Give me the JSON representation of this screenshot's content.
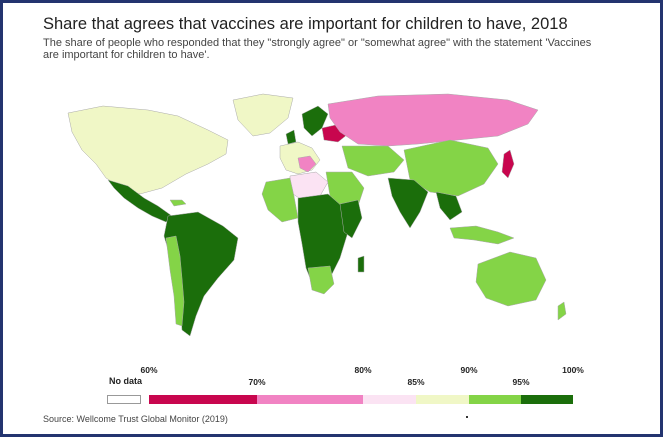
{
  "title": "Share that agrees that vaccines are important for children to have, 2018",
  "subtitle": "The share of people who responded that they \"strongly agree\" or \"somewhat agree\" with the statement 'Vaccines are important for children to have'.",
  "source": "Source: Wellcome Trust Global Monitor (2019)",
  "legend": {
    "no_data_label": "No data",
    "ticks": [
      "60%",
      "70%",
      "80%",
      "85%",
      "90%",
      "95%",
      "100%"
    ],
    "bins": [
      {
        "range": "60-70%",
        "color": "#c8064e"
      },
      {
        "range": "70-80%",
        "color": "#f183c3"
      },
      {
        "range": "80-85%",
        "color": "#fbe3f3"
      },
      {
        "range": "85-90%",
        "color": "#f0f7c6"
      },
      {
        "range": "90-95%",
        "color": "#84d447"
      },
      {
        "range": "95-100%",
        "color": "#1b6e0b"
      }
    ],
    "no_data_color": "#ffffff"
  }
}
